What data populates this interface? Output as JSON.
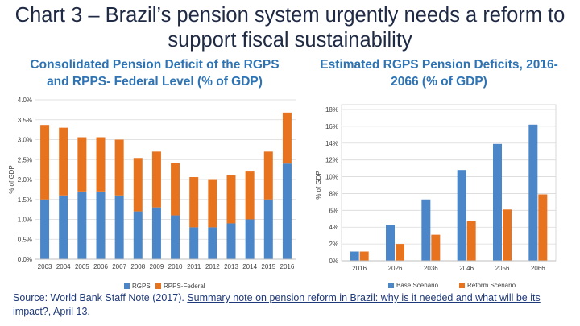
{
  "slide": {
    "title": "Chart 3 – Brazil’s pension system urgently needs a reform to support fiscal sustainability"
  },
  "source": {
    "prefix": "Source: World Bank Staff Note (2017). ",
    "link_text": "Summary note on pension reform in Brazil: why is it needed and what will be its impact?",
    "suffix": ", April 13."
  },
  "colors": {
    "rgps": "#4a86c8",
    "rpps": "#e8731f",
    "base": "#4a86c8",
    "reform": "#e8731f"
  },
  "chart_data": [
    {
      "type": "bar",
      "stacked": true,
      "title": "Consolidated Pension Deficit of the RGPS and RPPS- Federal Level (% of GDP)",
      "ylabel": "% of GDP",
      "xlabel": "",
      "ylim": [
        0,
        4
      ],
      "yticks": [
        "0.0%",
        "0.5%",
        "1.0%",
        "1.5%",
        "2.0%",
        "2.5%",
        "3.0%",
        "3.5%",
        "4.0%"
      ],
      "grid": true,
      "legend": "bottom",
      "categories": [
        "2003",
        "2004",
        "2005",
        "2006",
        "2007",
        "2008",
        "2009",
        "2010",
        "2011",
        "2012",
        "2013",
        "2014",
        "2015",
        "2016"
      ],
      "series": [
        {
          "name": "RGPS",
          "values": [
            1.5,
            1.6,
            1.7,
            1.7,
            1.6,
            1.2,
            1.3,
            1.1,
            0.8,
            0.8,
            0.9,
            1.0,
            1.5,
            2.4
          ]
        },
        {
          "name": "RPPS-Federal",
          "values": [
            1.87,
            1.7,
            1.36,
            1.36,
            1.4,
            1.34,
            1.4,
            1.31,
            1.26,
            1.21,
            1.21,
            1.2,
            1.2,
            1.28
          ]
        }
      ]
    },
    {
      "type": "bar",
      "stacked": false,
      "title": "Estimated RGPS Pension Deficits, 2016-2066 (% of GDP)",
      "ylabel": "% of GDP",
      "xlabel": "",
      "ylim": [
        0,
        18
      ],
      "yticks": [
        "0%",
        "2%",
        "4%",
        "6%",
        "8%",
        "10%",
        "12%",
        "14%",
        "16%",
        "18%"
      ],
      "grid": true,
      "legend": "bottom",
      "categories": [
        "2016",
        "2026",
        "2036",
        "2046",
        "2056",
        "2066"
      ],
      "series": [
        {
          "name": "Base Scenario",
          "values": [
            1.1,
            4.3,
            7.3,
            10.8,
            13.9,
            16.2
          ]
        },
        {
          "name": "Reform Scenario",
          "values": [
            1.1,
            2.0,
            3.1,
            4.7,
            6.1,
            7.9
          ]
        }
      ]
    }
  ]
}
